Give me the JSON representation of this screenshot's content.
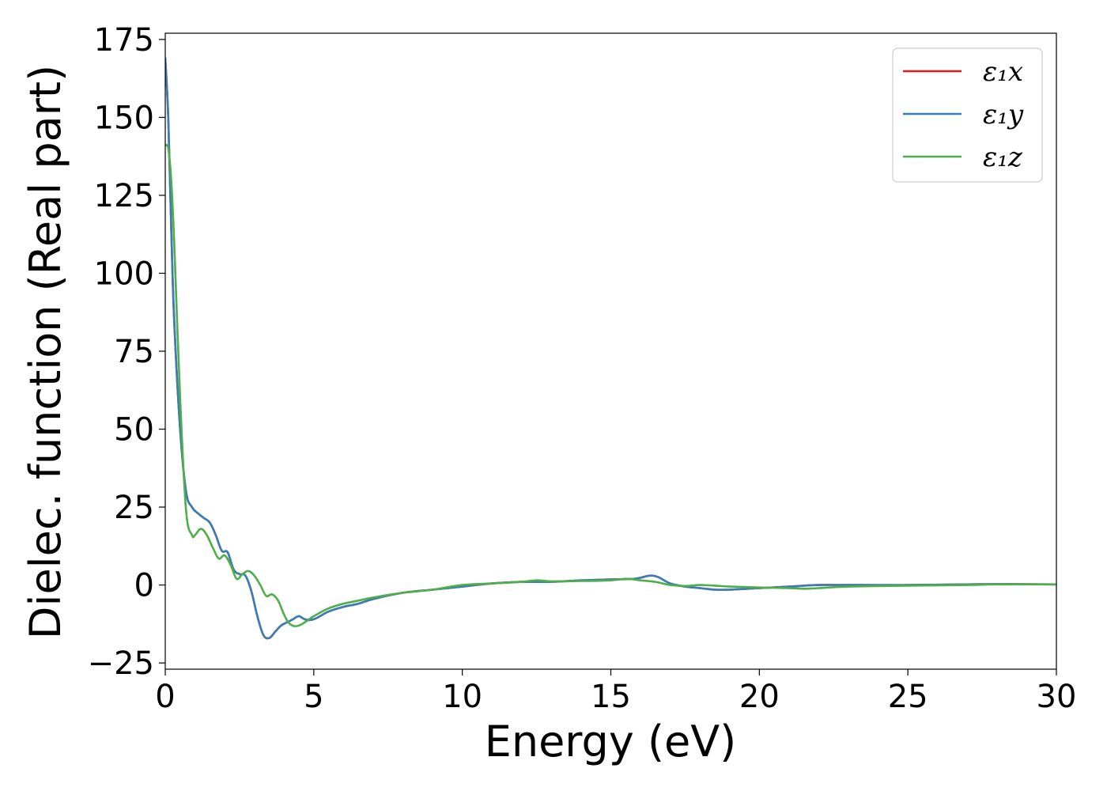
{
  "chart_data": {
    "type": "line",
    "xlabel": "Energy (eV)",
    "ylabel": "Dielec. function (Real part)",
    "xlim": [
      0,
      30
    ],
    "ylim": [
      -27,
      177
    ],
    "xticks": [
      0,
      5,
      10,
      15,
      20,
      25,
      30
    ],
    "yticks": [
      -25,
      0,
      25,
      50,
      75,
      100,
      125,
      150,
      175
    ],
    "xtick_labels": [
      "0",
      "5",
      "10",
      "15",
      "20",
      "25",
      "30"
    ],
    "ytick_labels": [
      "−25",
      "0",
      "25",
      "50",
      "75",
      "100",
      "125",
      "150",
      "175"
    ],
    "grid": false,
    "legend_position": "top-right",
    "series": [
      {
        "name": "ε₁x",
        "color": "#e41a1c",
        "x": [
          0.0,
          0.1,
          0.2,
          0.3,
          0.5,
          0.7,
          0.9,
          1.1,
          1.3,
          1.5,
          1.7,
          1.9,
          2.1,
          2.3,
          2.5,
          2.7,
          2.9,
          3.1,
          3.3,
          3.5,
          3.7,
          3.9,
          4.1,
          4.3,
          4.5,
          4.7,
          5.0,
          5.5,
          6.0,
          6.5,
          7.0,
          8.0,
          9.0,
          10.0,
          11.0,
          12.0,
          13.0,
          14.0,
          15.0,
          15.8,
          16.3,
          16.6,
          17.0,
          17.5,
          18.0,
          18.5,
          19.0,
          20.0,
          21.0,
          22.0,
          23.0,
          25.0,
          27.0,
          28.0,
          30.0
        ],
        "y": [
          169.0,
          150.0,
          115.0,
          85.0,
          50.0,
          30.0,
          25.0,
          23.0,
          21.5,
          20.0,
          16.0,
          11.0,
          10.5,
          5.0,
          3.5,
          3.0,
          -2.0,
          -10.0,
          -16.0,
          -17.0,
          -15.0,
          -13.0,
          -12.0,
          -11.0,
          -10.0,
          -11.0,
          -11.0,
          -8.5,
          -7.0,
          -6.0,
          -4.5,
          -2.5,
          -1.5,
          -0.5,
          0.5,
          1.0,
          1.0,
          1.5,
          1.8,
          2.0,
          3.0,
          2.5,
          0.5,
          -0.5,
          -1.0,
          -1.5,
          -1.5,
          -1.0,
          -0.5,
          0.0,
          0.0,
          0.0,
          0.2,
          0.3,
          0.2
        ]
      },
      {
        "name": "ε₁y",
        "color": "#377eb8",
        "x": [
          0.0,
          0.1,
          0.2,
          0.3,
          0.5,
          0.7,
          0.9,
          1.1,
          1.3,
          1.5,
          1.7,
          1.9,
          2.1,
          2.3,
          2.5,
          2.7,
          2.9,
          3.1,
          3.3,
          3.5,
          3.7,
          3.9,
          4.1,
          4.3,
          4.5,
          4.7,
          5.0,
          5.5,
          6.0,
          6.5,
          7.0,
          8.0,
          9.0,
          10.0,
          11.0,
          12.0,
          13.0,
          14.0,
          15.0,
          15.8,
          16.3,
          16.6,
          17.0,
          17.5,
          18.0,
          18.5,
          19.0,
          20.0,
          21.0,
          22.0,
          23.0,
          25.0,
          27.0,
          28.0,
          30.0
        ],
        "y": [
          169.0,
          150.0,
          115.0,
          85.0,
          50.0,
          30.0,
          25.0,
          23.0,
          21.5,
          20.0,
          16.0,
          11.0,
          10.5,
          5.0,
          3.5,
          3.0,
          -2.0,
          -10.0,
          -16.0,
          -17.0,
          -15.0,
          -13.0,
          -12.0,
          -11.0,
          -10.0,
          -11.0,
          -11.0,
          -8.5,
          -7.0,
          -6.0,
          -4.5,
          -2.5,
          -1.5,
          -0.5,
          0.5,
          1.0,
          1.0,
          1.5,
          1.8,
          2.0,
          3.0,
          2.5,
          0.5,
          -0.5,
          -1.0,
          -1.5,
          -1.5,
          -1.0,
          -0.5,
          0.0,
          0.0,
          0.0,
          0.2,
          0.3,
          0.2
        ]
      },
      {
        "name": "ε₁z",
        "color": "#4daf4a",
        "x": [
          0.0,
          0.1,
          0.2,
          0.3,
          0.5,
          0.7,
          0.9,
          1.0,
          1.2,
          1.4,
          1.6,
          1.8,
          2.0,
          2.2,
          2.4,
          2.6,
          2.8,
          3.0,
          3.2,
          3.4,
          3.6,
          3.8,
          4.0,
          4.2,
          4.5,
          5.0,
          5.5,
          6.0,
          6.5,
          7.0,
          8.0,
          9.0,
          10.0,
          11.0,
          12.0,
          12.5,
          13.0,
          14.0,
          15.0,
          15.5,
          16.0,
          16.5,
          17.0,
          17.5,
          18.0,
          18.5,
          19.0,
          20.0,
          21.0,
          21.5,
          22.0,
          23.0,
          25.0,
          27.0,
          28.0,
          30.0
        ],
        "y": [
          141.0,
          140.0,
          130.0,
          110.0,
          60.0,
          24.0,
          16.0,
          16.0,
          18.0,
          16.0,
          12.0,
          8.5,
          9.5,
          6.5,
          2.0,
          3.5,
          4.5,
          3.0,
          0.0,
          -3.5,
          -3.0,
          -5.0,
          -9.5,
          -12.5,
          -13.0,
          -10.0,
          -7.5,
          -6.0,
          -5.0,
          -4.0,
          -2.5,
          -1.5,
          0.0,
          0.5,
          1.0,
          1.5,
          1.2,
          1.3,
          1.5,
          2.0,
          1.5,
          1.0,
          0.0,
          -0.3,
          0.0,
          -0.2,
          -0.5,
          -0.8,
          -1.0,
          -1.2,
          -1.0,
          -0.5,
          -0.2,
          0.0,
          0.2,
          0.2
        ]
      }
    ]
  }
}
